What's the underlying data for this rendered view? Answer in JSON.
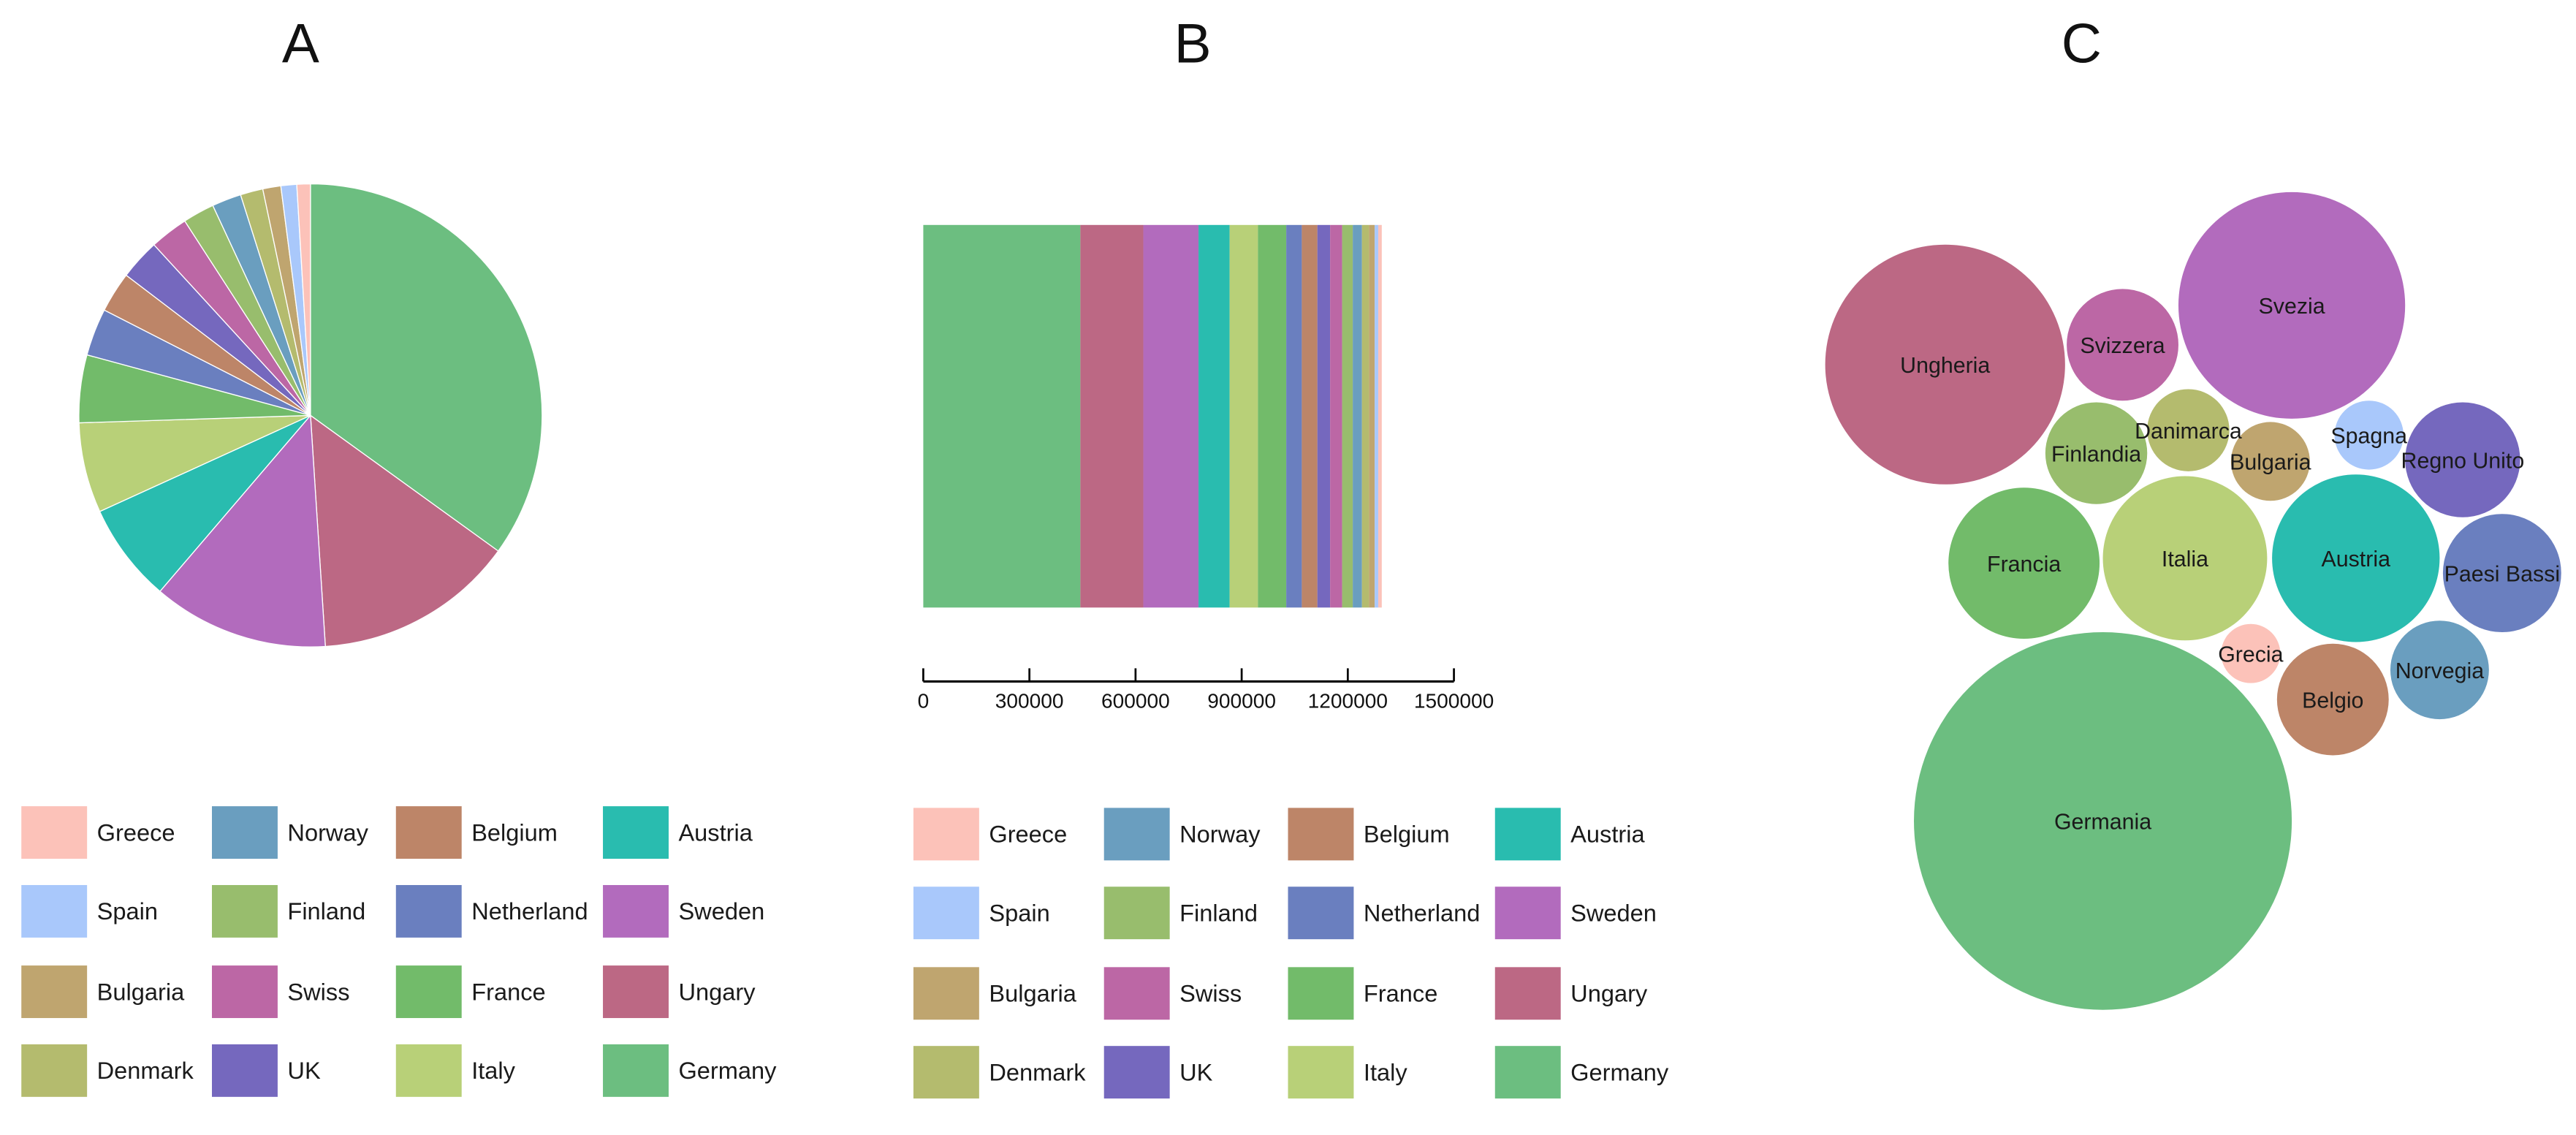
{
  "colors": {
    "Greece": "#fcc2b9",
    "Spain": "#a9c8fb",
    "Bulgaria": "#bfa56f",
    "Denmark": "#b4bb6e",
    "Norway": "#6a9ebf",
    "Finland": "#98bd6d",
    "Swiss": "#bc67a5",
    "UK": "#7568be",
    "Belgium": "#bd8568",
    "Netherland": "#6a7fbf",
    "France": "#72bb6a",
    "Italy": "#b8d078",
    "Austria": "#29bcaf",
    "Sweden": "#b26bbd",
    "Ungary": "#bc6884",
    "Germany": "#6cbe80"
  },
  "legend": {
    "columns": [
      [
        "Greece",
        "Spain",
        "Bulgaria",
        "Denmark"
      ],
      [
        "Norway",
        "Finland",
        "Swiss",
        "UK"
      ],
      [
        "Belgium",
        "Netherland",
        "France",
        "Italy"
      ],
      [
        "Austria",
        "Sweden",
        "Ungary",
        "Germany"
      ]
    ]
  },
  "chart_data": [
    {
      "panel": "A",
      "type": "pie",
      "title": "A",
      "slices": [
        {
          "label": "Germany",
          "value": 444000
        },
        {
          "label": "Ungary",
          "value": 178000
        },
        {
          "label": "Sweden",
          "value": 156000
        },
        {
          "label": "Austria",
          "value": 88000
        },
        {
          "label": "Italy",
          "value": 80000
        },
        {
          "label": "France",
          "value": 60000
        },
        {
          "label": "Netherland",
          "value": 42000
        },
        {
          "label": "Belgium",
          "value": 36000
        },
        {
          "label": "UK",
          "value": 36000
        },
        {
          "label": "Swiss",
          "value": 34000
        },
        {
          "label": "Finland",
          "value": 28000
        },
        {
          "label": "Norway",
          "value": 26000
        },
        {
          "label": "Denmark",
          "value": 20000
        },
        {
          "label": "Bulgaria",
          "value": 16000
        },
        {
          "label": "Spain",
          "value": 14000
        },
        {
          "label": "Greece",
          "value": 12000
        }
      ]
    },
    {
      "panel": "B",
      "type": "bar",
      "title": "B",
      "orientation": "horizontal-stacked",
      "series": [
        {
          "name": "Germany",
          "value": 444000
        },
        {
          "name": "Ungary",
          "value": 178000
        },
        {
          "name": "Sweden",
          "value": 156000
        },
        {
          "name": "Austria",
          "value": 88000
        },
        {
          "name": "Italy",
          "value": 80000
        },
        {
          "name": "France",
          "value": 80000
        },
        {
          "name": "Netherland",
          "value": 44000
        },
        {
          "name": "Belgium",
          "value": 44000
        },
        {
          "name": "UK",
          "value": 36000
        },
        {
          "name": "Swiss",
          "value": 34000
        },
        {
          "name": "Finland",
          "value": 30000
        },
        {
          "name": "Norway",
          "value": 26000
        },
        {
          "name": "Denmark",
          "value": 20000
        },
        {
          "name": "Bulgaria",
          "value": 16000
        },
        {
          "name": "Spain",
          "value": 10000
        },
        {
          "name": "Greece",
          "value": 10000
        }
      ],
      "xlim": [
        0,
        1500000
      ],
      "xticks": [
        "0",
        "300000",
        "600000",
        "900000",
        "1200000",
        "1500000"
      ]
    },
    {
      "panel": "C",
      "type": "bubble",
      "title": "C",
      "bubbles": [
        {
          "key": "Germany",
          "label": "Germania",
          "value": 444000
        },
        {
          "key": "Ungary",
          "label": "Ungheria",
          "value": 178000
        },
        {
          "key": "Sweden",
          "label": "Svezia",
          "value": 156000
        },
        {
          "key": "Austria",
          "label": "Austria",
          "value": 88000
        },
        {
          "key": "Italy",
          "label": "Italia",
          "value": 88000
        },
        {
          "key": "France",
          "label": "Francia",
          "value": 72000
        },
        {
          "key": "Netherland",
          "label": "Paesi Bassi",
          "value": 44000
        },
        {
          "key": "UK",
          "label": "Regno Unito",
          "value": 42000
        },
        {
          "key": "Belgium",
          "label": "Belgio",
          "value": 40000
        },
        {
          "key": "Swiss",
          "label": "Svizzera",
          "value": 40000
        },
        {
          "key": "Finland",
          "label": "Finlandia",
          "value": 33000
        },
        {
          "key": "Norway",
          "label": "Norvegia",
          "value": 31000
        },
        {
          "key": "Denmark",
          "label": "Danimarca",
          "value": 22000
        },
        {
          "key": "Bulgaria",
          "label": "Bulgaria",
          "value": 20000
        },
        {
          "key": "Spain",
          "label": "Spagna",
          "value": 15000
        },
        {
          "key": "Greece",
          "label": "Grecia",
          "value": 11000
        }
      ]
    }
  ]
}
